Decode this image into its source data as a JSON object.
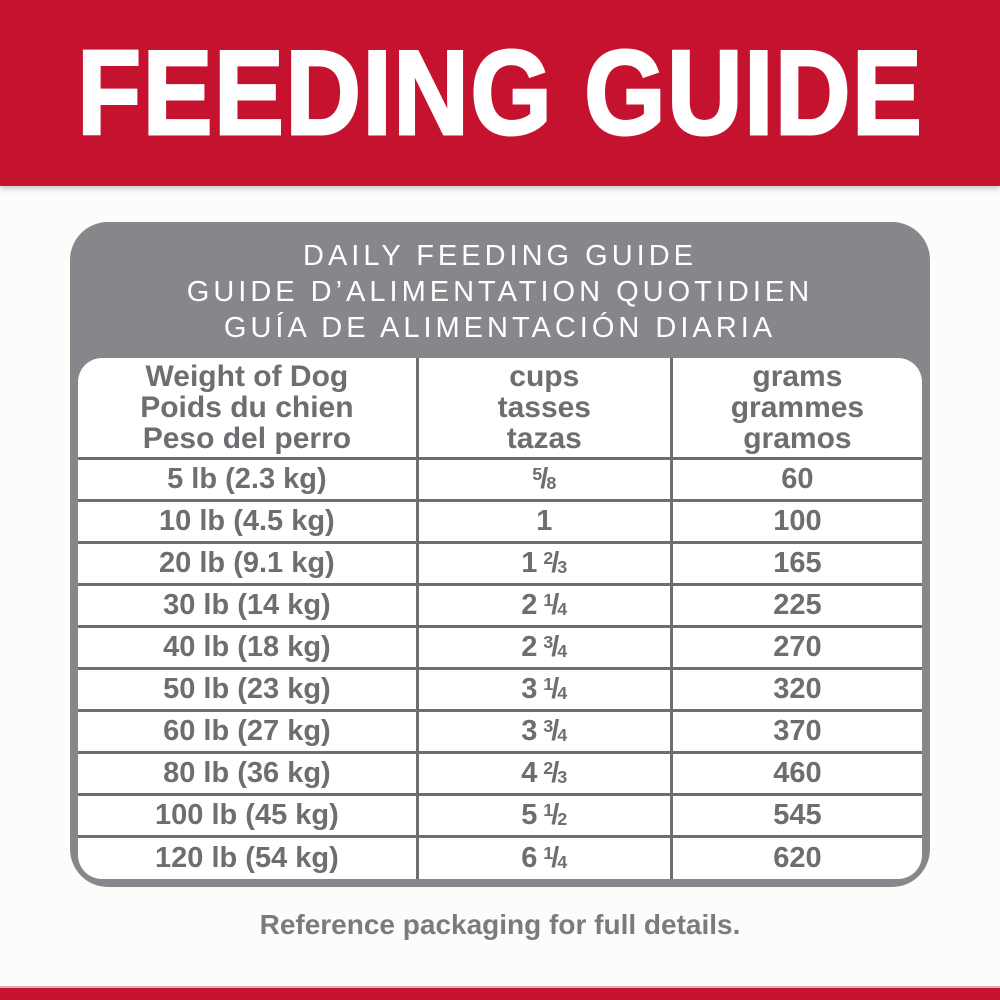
{
  "banner": {
    "title": "FEEDING GUIDE"
  },
  "panel": {
    "title_lines": [
      "DAILY FEEDING GUIDE",
      "GUIDE D’ALIMENTATION QUOTIDIEN",
      "GUÍA DE ALIMENTACIÓN DIARIA"
    ]
  },
  "table": {
    "headers": [
      {
        "lines": [
          "Weight of Dog",
          "Poids du chien",
          "Peso del perro"
        ]
      },
      {
        "lines": [
          "cups",
          "tasses",
          "tazas"
        ]
      },
      {
        "lines": [
          "grams",
          "grammes",
          "gramos"
        ]
      }
    ],
    "rows": [
      {
        "weight": "5 lb (2.3 kg)",
        "cups": {
          "whole": "",
          "num": "5",
          "den": "8"
        },
        "grams": "60"
      },
      {
        "weight": "10 lb (4.5 kg)",
        "cups": {
          "whole": "1",
          "num": "",
          "den": ""
        },
        "grams": "100"
      },
      {
        "weight": "20 lb (9.1 kg)",
        "cups": {
          "whole": "1",
          "num": "2",
          "den": "3"
        },
        "grams": "165"
      },
      {
        "weight": "30 lb (14 kg)",
        "cups": {
          "whole": "2",
          "num": "1",
          "den": "4"
        },
        "grams": "225"
      },
      {
        "weight": "40 lb (18 kg)",
        "cups": {
          "whole": "2",
          "num": "3",
          "den": "4"
        },
        "grams": "270"
      },
      {
        "weight": "50 lb (23 kg)",
        "cups": {
          "whole": "3",
          "num": "1",
          "den": "4"
        },
        "grams": "320"
      },
      {
        "weight": "60 lb (27 kg)",
        "cups": {
          "whole": "3",
          "num": "3",
          "den": "4"
        },
        "grams": "370"
      },
      {
        "weight": "80 lb (36 kg)",
        "cups": {
          "whole": "4",
          "num": "2",
          "den": "3"
        },
        "grams": "460"
      },
      {
        "weight": "100 lb (45 kg)",
        "cups": {
          "whole": "5",
          "num": "1",
          "den": "2"
        },
        "grams": "545"
      },
      {
        "weight": "120 lb (54 kg)",
        "cups": {
          "whole": "6",
          "num": "1",
          "den": "4"
        },
        "grams": "620"
      }
    ]
  },
  "footer": {
    "note": "Reference packaging for full details."
  },
  "colors": {
    "accent_red": "#C5122F",
    "panel_gray": "#85878A",
    "text_gray": "#6D6E71"
  }
}
